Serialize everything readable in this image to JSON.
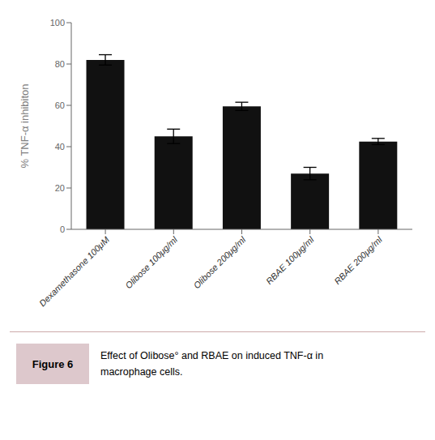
{
  "chart_data": {
    "type": "bar",
    "categories": [
      "Dexamethasone 100μM",
      "Olibose 100μg/ml",
      "Olibose 200μg/ml",
      "RBAE 100μg/ml",
      "RBAE 200μg/ml"
    ],
    "values": [
      82,
      45,
      59.5,
      27,
      42.5
    ],
    "errors": [
      2.5,
      3.5,
      2.0,
      3.0,
      1.5
    ],
    "color": "#111111",
    "ylabel": "% TNF-α inhibiton",
    "ylim": [
      0,
      100
    ],
    "yticks": [
      0,
      20,
      40,
      60,
      80,
      100
    ],
    "grid": false,
    "annotations": [
      "Figure 6",
      "Effect of Olibose° and RBAE on induced TNF-α in",
      "macrophage cells."
    ]
  }
}
